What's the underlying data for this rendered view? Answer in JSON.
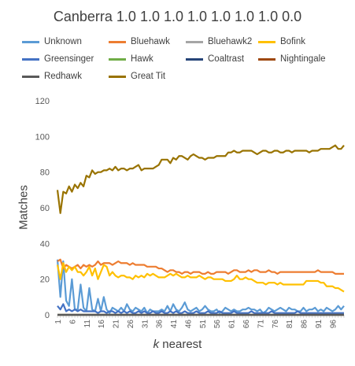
{
  "chart_data": {
    "type": "line",
    "title": "Canberra 1.0 1.0 1.0 1.0 1.0 1.0 1.0 0.0",
    "xlabel_italic": "k",
    "xlabel_rest": " nearest",
    "ylabel": "Matches",
    "ylim": [
      0,
      120
    ],
    "yticks": [
      0,
      20,
      40,
      60,
      80,
      100,
      120
    ],
    "xlim": [
      1,
      100
    ],
    "xticks": [
      1,
      6,
      11,
      16,
      21,
      26,
      31,
      36,
      41,
      46,
      51,
      56,
      61,
      66,
      71,
      76,
      81,
      86,
      91,
      96
    ],
    "grid": false,
    "legend_position": "top",
    "series": [
      {
        "name": "Unknown",
        "color": "#5B9BD5",
        "values": [
          31,
          10,
          30,
          8,
          5,
          20,
          3,
          3,
          17,
          4,
          2,
          15,
          3,
          2,
          9,
          2,
          10,
          3,
          1,
          4,
          3,
          2,
          4,
          2,
          6,
          3,
          2,
          4,
          3,
          2,
          4,
          1,
          3,
          2,
          2,
          2,
          3,
          2,
          5,
          2,
          6,
          3,
          2,
          4,
          7,
          3,
          2,
          3,
          4,
          2,
          3,
          5,
          3,
          2,
          2,
          3,
          1,
          2,
          4,
          3,
          2,
          3,
          2,
          2,
          3,
          3,
          4,
          3,
          3,
          2,
          3,
          1,
          2,
          4,
          3,
          2,
          3,
          4,
          3,
          2,
          4,
          3,
          3,
          2,
          2,
          4,
          2,
          3,
          3,
          4,
          2,
          3,
          2,
          4,
          3,
          2,
          3,
          5,
          3,
          5
        ]
      },
      {
        "name": "Bluehawk",
        "color": "#ED7D31",
        "values": [
          30,
          31,
          26,
          28,
          27,
          26,
          27,
          28,
          26,
          28,
          27,
          28,
          27,
          28,
          30,
          28,
          29,
          29,
          29,
          28,
          29,
          30,
          29,
          29,
          29,
          28,
          29,
          28,
          28,
          28,
          28,
          27,
          27,
          27,
          27,
          26,
          26,
          25,
          24,
          25,
          25,
          24,
          24,
          23,
          24,
          24,
          23,
          24,
          24,
          24,
          23,
          23,
          24,
          23,
          23,
          24,
          24,
          24,
          24,
          23,
          24,
          25,
          25,
          24,
          24,
          24,
          25,
          24,
          25,
          25,
          24,
          24,
          24,
          25,
          24,
          24,
          23,
          24,
          24,
          24,
          24,
          24,
          24,
          24,
          24,
          24,
          24,
          24,
          24,
          24,
          25,
          24,
          24,
          24,
          24,
          24,
          23,
          23,
          23,
          23
        ]
      },
      {
        "name": "Bluehawk2",
        "color": "#A5A5A5",
        "values": [
          0,
          0,
          0,
          0,
          0,
          0,
          0,
          0,
          0,
          0,
          0,
          0,
          0,
          0,
          0,
          0,
          0,
          0,
          0,
          0,
          0,
          0,
          0,
          0,
          0,
          0,
          0,
          0,
          0,
          0,
          0,
          0,
          0,
          0,
          0,
          0,
          0,
          0,
          0,
          0,
          0,
          0,
          0,
          0,
          0,
          0,
          0,
          0,
          0,
          0,
          0,
          0,
          0,
          0,
          0,
          0,
          0,
          0,
          0,
          0,
          0,
          0,
          0,
          0,
          0,
          0,
          0,
          0,
          0,
          0,
          0,
          0,
          0,
          0,
          0,
          0,
          0,
          0,
          0,
          0,
          0,
          0,
          0,
          0,
          0,
          0,
          0,
          0,
          0,
          0,
          0,
          0,
          0,
          0,
          0,
          0,
          0,
          0,
          0,
          0
        ]
      },
      {
        "name": "Bofink",
        "color": "#FFC000",
        "values": [
          28,
          20,
          29,
          24,
          27,
          25,
          27,
          24,
          24,
          22,
          24,
          27,
          22,
          26,
          20,
          24,
          28,
          27,
          22,
          24,
          22,
          21,
          22,
          22,
          21,
          21,
          20,
          22,
          21,
          22,
          21,
          23,
          22,
          23,
          22,
          21,
          21,
          21,
          22,
          23,
          22,
          23,
          22,
          21,
          21,
          22,
          21,
          21,
          21,
          22,
          21,
          20,
          21,
          21,
          20,
          20,
          20,
          20,
          19,
          19,
          19,
          20,
          22,
          20,
          20,
          21,
          20,
          20,
          19,
          18,
          18,
          18,
          17,
          18,
          18,
          18,
          17,
          18,
          17,
          17,
          17,
          17,
          17,
          17,
          17,
          17,
          19,
          19,
          19,
          19,
          19,
          18,
          18,
          16,
          16,
          16,
          15,
          15,
          14,
          13
        ]
      },
      {
        "name": "Greensinger",
        "color": "#4472C4",
        "values": [
          5,
          3,
          6,
          2,
          3,
          2,
          3,
          2,
          3,
          2,
          2,
          2,
          2,
          2,
          1,
          2,
          2,
          1,
          2,
          2,
          1,
          2,
          1,
          2,
          1,
          2,
          1,
          1,
          2,
          1,
          2,
          1,
          1,
          2,
          1,
          1,
          2,
          1,
          1,
          2,
          1,
          2,
          1,
          1,
          2,
          1,
          1,
          1,
          2,
          1,
          1,
          1,
          2,
          1,
          1,
          1,
          2,
          1,
          1,
          1,
          1,
          2,
          1,
          1,
          1,
          1,
          1,
          2,
          1,
          1,
          1,
          1,
          1,
          1,
          2,
          1,
          1,
          1,
          1,
          1,
          1,
          1,
          1,
          2,
          1,
          1,
          1,
          1,
          1,
          1,
          1,
          1,
          1,
          1,
          1,
          1,
          1,
          1,
          1,
          1
        ]
      },
      {
        "name": "Hawk",
        "color": "#70AD47",
        "values": [
          0,
          0,
          0,
          0,
          0,
          0,
          0,
          0,
          0,
          0,
          0,
          0,
          0,
          0,
          0,
          0,
          0,
          0,
          0,
          0,
          0,
          0,
          0,
          0,
          0,
          0,
          0,
          0,
          0,
          0,
          0,
          0,
          0,
          0,
          0,
          0,
          0,
          0,
          0,
          0,
          0,
          0,
          0,
          0,
          0,
          0,
          0,
          0,
          0,
          0,
          0,
          0,
          0,
          0,
          0,
          0,
          0,
          0,
          0,
          0,
          0,
          0,
          0,
          0,
          0,
          0,
          0,
          0,
          0,
          0,
          0,
          0,
          0,
          0,
          0,
          0,
          0,
          0,
          0,
          0,
          0,
          0,
          0,
          0,
          0,
          0,
          0,
          0,
          0,
          0,
          0,
          0,
          0,
          0,
          0,
          0,
          0,
          0,
          0,
          0
        ]
      },
      {
        "name": "Coaltrast",
        "color": "#264478",
        "values": [
          0,
          0,
          0,
          0,
          0,
          0,
          0,
          0,
          0,
          0,
          0,
          0,
          0,
          0,
          0,
          0,
          0,
          0,
          0,
          0,
          0,
          0,
          0,
          0,
          0,
          0,
          0,
          0,
          0,
          0,
          0,
          0,
          0,
          0,
          0,
          0,
          0,
          0,
          0,
          0,
          0,
          0,
          0,
          0,
          0,
          0,
          0,
          0,
          0,
          0,
          0,
          0,
          0,
          0,
          0,
          0,
          0,
          0,
          0,
          0,
          0,
          0,
          0,
          0,
          0,
          0,
          0,
          0,
          0,
          0,
          0,
          0,
          0,
          0,
          0,
          0,
          0,
          0,
          0,
          0,
          0,
          0,
          0,
          0,
          0,
          0,
          0,
          0,
          0,
          0,
          0,
          0,
          0,
          0,
          0,
          0,
          0,
          0,
          0,
          0
        ]
      },
      {
        "name": "Nightingale",
        "color": "#9E480E",
        "values": [
          0,
          0,
          0,
          0,
          0,
          0,
          0,
          0,
          0,
          0,
          0,
          0,
          0,
          0,
          0,
          0,
          0,
          0,
          0,
          0,
          0,
          0,
          0,
          0,
          0,
          0,
          0,
          0,
          0,
          0,
          0,
          0,
          0,
          0,
          0,
          0,
          0,
          0,
          0,
          0,
          0,
          0,
          0,
          0,
          0,
          0,
          0,
          0,
          0,
          0,
          0,
          0,
          0,
          0,
          0,
          0,
          0,
          0,
          0,
          0,
          0,
          0,
          0,
          0,
          0,
          0,
          0,
          0,
          0,
          0,
          0,
          0,
          0,
          0,
          0,
          0,
          0,
          0,
          0,
          0,
          0,
          0,
          0,
          0,
          0,
          0,
          0,
          0,
          0,
          0,
          0,
          0,
          0,
          0,
          0,
          0,
          0,
          0,
          0,
          0
        ]
      },
      {
        "name": "Redhawk",
        "color": "#595959",
        "values": [
          0,
          0,
          0,
          0,
          0,
          0,
          0,
          0,
          0,
          0,
          0,
          0,
          0,
          0,
          0,
          0,
          0,
          0,
          0,
          0,
          0,
          0,
          0,
          0,
          0,
          0,
          0,
          0,
          0,
          0,
          0,
          0,
          0,
          0,
          0,
          0,
          0,
          0,
          0,
          0,
          0,
          0,
          0,
          0,
          0,
          0,
          0,
          0,
          0,
          0,
          0,
          0,
          0,
          0,
          0,
          0,
          0,
          0,
          0,
          0,
          0,
          0,
          0,
          0,
          0,
          0,
          0,
          0,
          0,
          0,
          0,
          0,
          0,
          0,
          0,
          0,
          0,
          0,
          0,
          0,
          0,
          0,
          0,
          0,
          0,
          0,
          0,
          0,
          0,
          0,
          0,
          0,
          0,
          0,
          0,
          0,
          0,
          0,
          0,
          0
        ]
      },
      {
        "name": "Great Tit",
        "color": "#997300",
        "values": [
          70,
          57,
          69,
          68,
          72,
          69,
          73,
          71,
          74,
          72,
          78,
          77,
          81,
          79,
          80,
          80,
          81,
          81,
          82,
          81,
          83,
          81,
          82,
          82,
          81,
          82,
          82,
          83,
          84,
          81,
          82,
          82,
          82,
          82,
          83,
          84,
          87,
          87,
          87,
          85,
          88,
          87,
          89,
          89,
          88,
          87,
          89,
          90,
          89,
          88,
          88,
          87,
          88,
          88,
          88,
          89,
          89,
          89,
          89,
          91,
          91,
          92,
          91,
          91,
          92,
          92,
          92,
          92,
          91,
          90,
          91,
          92,
          92,
          91,
          91,
          92,
          92,
          91,
          91,
          92,
          92,
          91,
          92,
          92,
          92,
          92,
          92,
          91,
          92,
          92,
          92,
          93,
          93,
          93,
          93,
          94,
          95,
          93,
          93,
          95
        ]
      }
    ]
  }
}
